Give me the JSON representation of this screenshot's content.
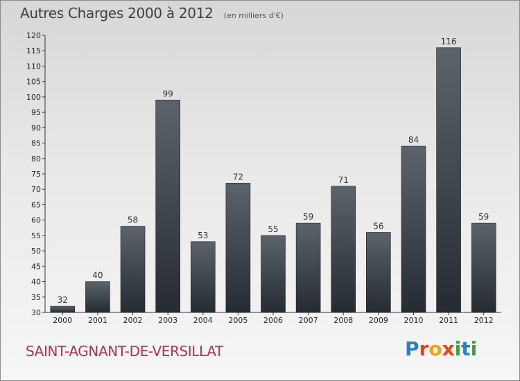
{
  "header": {
    "title": "Autres Charges 2000 à 2012",
    "subtitle": "(en milliers d'€)"
  },
  "footer": {
    "place": "SAINT-AGNANT-DE-VERSILLAT",
    "logo": [
      "P",
      "r",
      "o",
      "x",
      "i",
      "t",
      "i"
    ],
    "logo_colors": [
      "#2b7fc3",
      "#e2461e",
      "#f0a11b",
      "#e2461e",
      "#3aa23a",
      "#2b7fc3",
      "#3aa23a"
    ]
  },
  "chart_data": {
    "type": "bar",
    "categories": [
      "2000",
      "2001",
      "2002",
      "2003",
      "2004",
      "2005",
      "2006",
      "2007",
      "2008",
      "2009",
      "2010",
      "2011",
      "2012"
    ],
    "values": [
      32,
      40,
      58,
      99,
      53,
      72,
      55,
      59,
      71,
      56,
      84,
      116,
      59
    ],
    "title": "Autres Charges 2000 à 2012",
    "subtitle": "(en milliers d'€)",
    "xlabel": "",
    "ylabel": "",
    "ylim": [
      30,
      120
    ],
    "yticks": [
      30,
      35,
      40,
      45,
      50,
      55,
      60,
      65,
      70,
      75,
      80,
      85,
      90,
      95,
      100,
      105,
      110,
      115,
      120
    ],
    "grid": false,
    "legend": "none",
    "bar_color": "#4a5058"
  }
}
